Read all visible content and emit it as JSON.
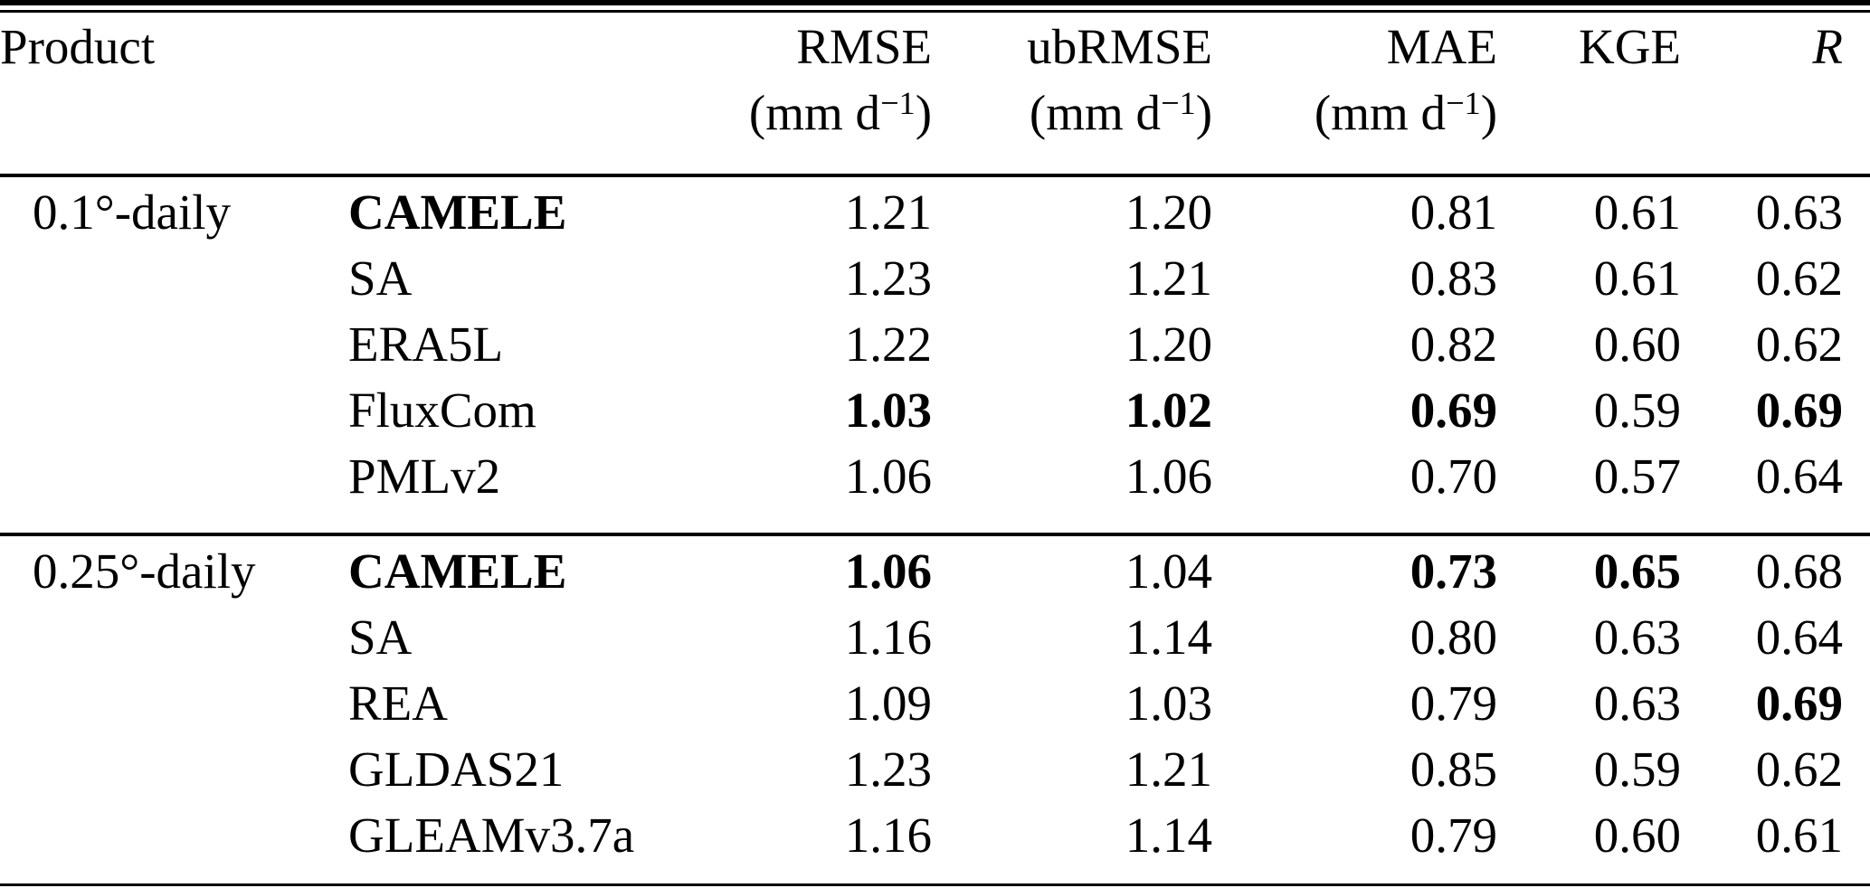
{
  "table": {
    "columns": [
      {
        "label": "Product"
      },
      {
        "label": "RMSE",
        "unit_pre": "(mm d",
        "unit_sup": "−1",
        "unit_post": ")"
      },
      {
        "label": "ubRMSE",
        "unit_pre": "(mm d",
        "unit_sup": "−1",
        "unit_post": ")"
      },
      {
        "label": "MAE",
        "unit_pre": "(mm d",
        "unit_sup": "−1",
        "unit_post": ")"
      },
      {
        "label": "KGE"
      },
      {
        "label": "R"
      }
    ],
    "groups": [
      {
        "resolution": "0.1°-daily",
        "rows": [
          {
            "product": "CAMELE",
            "bold_name": true,
            "values": [
              "1.21",
              "1.20",
              "0.81",
              "0.61",
              "0.63"
            ],
            "bold": [
              false,
              false,
              false,
              false,
              false
            ]
          },
          {
            "product": "SA",
            "bold_name": false,
            "values": [
              "1.23",
              "1.21",
              "0.83",
              "0.61",
              "0.62"
            ],
            "bold": [
              false,
              false,
              false,
              false,
              false
            ]
          },
          {
            "product": "ERA5L",
            "bold_name": false,
            "values": [
              "1.22",
              "1.20",
              "0.82",
              "0.60",
              "0.62"
            ],
            "bold": [
              false,
              false,
              false,
              false,
              false
            ]
          },
          {
            "product": "FluxCom",
            "bold_name": false,
            "values": [
              "1.03",
              "1.02",
              "0.69",
              "0.59",
              "0.69"
            ],
            "bold": [
              true,
              true,
              true,
              false,
              true
            ]
          },
          {
            "product": "PMLv2",
            "bold_name": false,
            "values": [
              "1.06",
              "1.06",
              "0.70",
              "0.57",
              "0.64"
            ],
            "bold": [
              false,
              false,
              false,
              false,
              false
            ]
          }
        ]
      },
      {
        "resolution": "0.25°-daily",
        "rows": [
          {
            "product": "CAMELE",
            "bold_name": true,
            "values": [
              "1.06",
              "1.04",
              "0.73",
              "0.65",
              "0.68"
            ],
            "bold": [
              true,
              false,
              true,
              true,
              false
            ]
          },
          {
            "product": "SA",
            "bold_name": false,
            "values": [
              "1.16",
              "1.14",
              "0.80",
              "0.63",
              "0.64"
            ],
            "bold": [
              false,
              false,
              false,
              false,
              false
            ]
          },
          {
            "product": "REA",
            "bold_name": false,
            "values": [
              "1.09",
              "1.03",
              "0.79",
              "0.63",
              "0.69"
            ],
            "bold": [
              false,
              false,
              false,
              false,
              true
            ]
          },
          {
            "product": "GLDAS21",
            "bold_name": false,
            "values": [
              "1.23",
              "1.21",
              "0.85",
              "0.59",
              "0.62"
            ],
            "bold": [
              false,
              false,
              false,
              false,
              false
            ]
          },
          {
            "product": "GLEAMv3.7a",
            "bold_name": false,
            "values": [
              "1.16",
              "1.14",
              "0.79",
              "0.60",
              "0.61"
            ],
            "bold": [
              false,
              false,
              false,
              false,
              false
            ]
          }
        ]
      }
    ]
  }
}
